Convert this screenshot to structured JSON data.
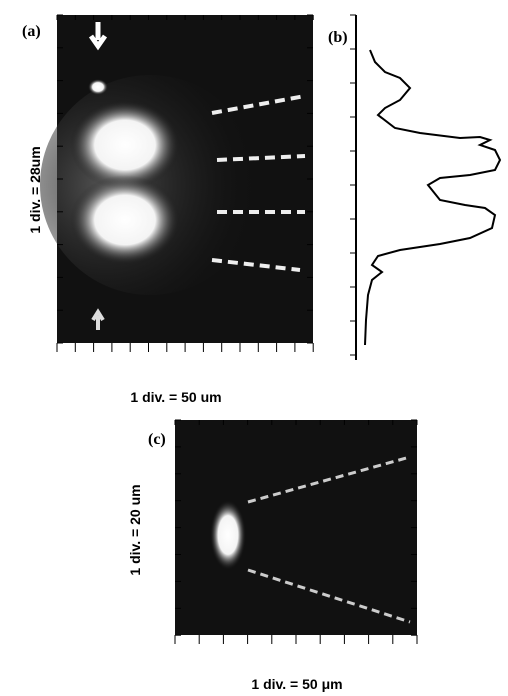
{
  "panels": [
    {
      "label": "(a)",
      "y_scale": "1 div. = 28um",
      "x_scale": "1 div. = 50 um"
    },
    {
      "label": "(b)"
    },
    {
      "label": "(c)",
      "y_scale": "1 div. = 20 um",
      "x_scale": "1 div. = 50 μm"
    }
  ]
}
